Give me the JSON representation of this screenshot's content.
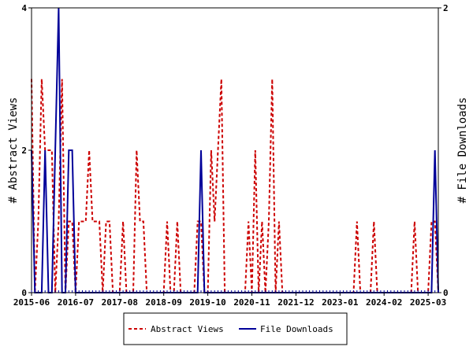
{
  "chart_data": {
    "type": "line",
    "left_ylabel": "# Abstract Views",
    "right_ylabel": "# File Downloads",
    "left_ylim": [
      0,
      4
    ],
    "right_ylim": [
      0,
      2
    ],
    "left_yticks": [
      "0",
      "2",
      "4"
    ],
    "right_yticks": [
      "0",
      "2"
    ],
    "xlim": [
      "2015-06",
      "2025-06"
    ],
    "xticks": [
      "2015-06",
      "2016-07",
      "2017-08",
      "2018-09",
      "2019-10",
      "2020-11",
      "2021-12",
      "2023-01",
      "2024-02",
      "2025-03"
    ],
    "grid": false,
    "legend_position": "bottom-center",
    "series": [
      {
        "name": "Abstract Views",
        "axis": "left",
        "color": "#cc0000",
        "style": "dashed",
        "points": [
          [
            "2015-06",
            3
          ],
          [
            "2015-07",
            0
          ],
          [
            "2015-08",
            1
          ],
          [
            "2015-09",
            3
          ],
          [
            "2015-10",
            2
          ],
          [
            "2015-11",
            2
          ],
          [
            "2015-12",
            2
          ],
          [
            "2016-01",
            0
          ],
          [
            "2016-02",
            1
          ],
          [
            "2016-03",
            3
          ],
          [
            "2016-04",
            0
          ],
          [
            "2016-05",
            1
          ],
          [
            "2016-06",
            1
          ],
          [
            "2016-07",
            0
          ],
          [
            "2016-08",
            1
          ],
          [
            "2016-09",
            1
          ],
          [
            "2016-10",
            1
          ],
          [
            "2016-11",
            2
          ],
          [
            "2016-12",
            1
          ],
          [
            "2017-01",
            1
          ],
          [
            "2017-02",
            1
          ],
          [
            "2017-03",
            0
          ],
          [
            "2017-04",
            1
          ],
          [
            "2017-05",
            1
          ],
          [
            "2017-06",
            0
          ],
          [
            "2017-07",
            0
          ],
          [
            "2017-08",
            0
          ],
          [
            "2017-09",
            1
          ],
          [
            "2017-10",
            0
          ],
          [
            "2017-11",
            0
          ],
          [
            "2017-12",
            0
          ],
          [
            "2018-01",
            2
          ],
          [
            "2018-02",
            1
          ],
          [
            "2018-03",
            1
          ],
          [
            "2018-04",
            0
          ],
          [
            "2018-05",
            0
          ],
          [
            "2018-06",
            0
          ],
          [
            "2018-07",
            0
          ],
          [
            "2018-08",
            0
          ],
          [
            "2018-09",
            0
          ],
          [
            "2018-10",
            1
          ],
          [
            "2018-11",
            0
          ],
          [
            "2018-12",
            0
          ],
          [
            "2019-01",
            1
          ],
          [
            "2019-02",
            0
          ],
          [
            "2019-03",
            0
          ],
          [
            "2019-04",
            0
          ],
          [
            "2019-05",
            0
          ],
          [
            "2019-06",
            0
          ],
          [
            "2019-07",
            1
          ],
          [
            "2019-08",
            1
          ],
          [
            "2019-09",
            0
          ],
          [
            "2019-10",
            0
          ],
          [
            "2019-11",
            2
          ],
          [
            "2019-12",
            1
          ],
          [
            "2020-01",
            2
          ],
          [
            "2020-02",
            3
          ],
          [
            "2020-03",
            0
          ],
          [
            "2020-04",
            0
          ],
          [
            "2020-05",
            0
          ],
          [
            "2020-06",
            0
          ],
          [
            "2020-07",
            0
          ],
          [
            "2020-08",
            0
          ],
          [
            "2020-09",
            0
          ],
          [
            "2020-10",
            1
          ],
          [
            "2020-11",
            0
          ],
          [
            "2020-12",
            2
          ],
          [
            "2021-01",
            0
          ],
          [
            "2021-02",
            1
          ],
          [
            "2021-03",
            0
          ],
          [
            "2021-04",
            1
          ],
          [
            "2021-05",
            3
          ],
          [
            "2021-06",
            0
          ],
          [
            "2021-07",
            1
          ],
          [
            "2021-08",
            0
          ],
          [
            "2021-09",
            0
          ],
          [
            "2021-10",
            0
          ],
          [
            "2021-11",
            0
          ],
          [
            "2021-12",
            0
          ],
          [
            "2022-01",
            0
          ],
          [
            "2022-02",
            0
          ],
          [
            "2022-03",
            0
          ],
          [
            "2022-04",
            0
          ],
          [
            "2022-05",
            0
          ],
          [
            "2022-06",
            0
          ],
          [
            "2022-07",
            0
          ],
          [
            "2022-08",
            0
          ],
          [
            "2022-09",
            0
          ],
          [
            "2022-10",
            0
          ],
          [
            "2022-11",
            0
          ],
          [
            "2022-12",
            0
          ],
          [
            "2023-01",
            0
          ],
          [
            "2023-02",
            0
          ],
          [
            "2023-03",
            0
          ],
          [
            "2023-04",
            0
          ],
          [
            "2023-05",
            0
          ],
          [
            "2023-06",
            1
          ],
          [
            "2023-07",
            0
          ],
          [
            "2023-08",
            0
          ],
          [
            "2023-09",
            0
          ],
          [
            "2023-10",
            0
          ],
          [
            "2023-11",
            1
          ],
          [
            "2023-12",
            0
          ],
          [
            "2024-01",
            0
          ],
          [
            "2024-02",
            0
          ],
          [
            "2024-03",
            0
          ],
          [
            "2024-04",
            0
          ],
          [
            "2024-05",
            0
          ],
          [
            "2024-06",
            0
          ],
          [
            "2024-07",
            0
          ],
          [
            "2024-08",
            0
          ],
          [
            "2024-09",
            0
          ],
          [
            "2024-10",
            0
          ],
          [
            "2024-11",
            1
          ],
          [
            "2024-12",
            0
          ],
          [
            "2025-01",
            0
          ],
          [
            "2025-02",
            0
          ],
          [
            "2025-03",
            0
          ],
          [
            "2025-04",
            1
          ],
          [
            "2025-05",
            1
          ],
          [
            "2025-06",
            0
          ]
        ]
      },
      {
        "name": "File Downloads",
        "axis": "right",
        "color": "#000099",
        "style": "solid",
        "points": [
          [
            "2015-06",
            1
          ],
          [
            "2015-07",
            0
          ],
          [
            "2015-08",
            0
          ],
          [
            "2015-09",
            0
          ],
          [
            "2015-10",
            1
          ],
          [
            "2015-11",
            0
          ],
          [
            "2015-12",
            0
          ],
          [
            "2016-01",
            1
          ],
          [
            "2016-02",
            2
          ],
          [
            "2016-03",
            0
          ],
          [
            "2016-04",
            0
          ],
          [
            "2016-05",
            1
          ],
          [
            "2016-06",
            1
          ],
          [
            "2016-07",
            0
          ],
          [
            "2016-08",
            0
          ],
          [
            "2016-09",
            0
          ],
          [
            "2016-10",
            0
          ],
          [
            "2016-11",
            0
          ],
          [
            "2016-12",
            0
          ],
          [
            "2017-01",
            0
          ],
          [
            "2017-02",
            0
          ],
          [
            "2017-03",
            0
          ],
          [
            "2017-04",
            0
          ],
          [
            "2017-05",
            0
          ],
          [
            "2017-06",
            0
          ],
          [
            "2017-07",
            0
          ],
          [
            "2017-08",
            0
          ],
          [
            "2017-09",
            0
          ],
          [
            "2017-10",
            0
          ],
          [
            "2017-11",
            0
          ],
          [
            "2017-12",
            0
          ],
          [
            "2018-01",
            0
          ],
          [
            "2018-02",
            0
          ],
          [
            "2018-03",
            0
          ],
          [
            "2018-04",
            0
          ],
          [
            "2018-05",
            0
          ],
          [
            "2018-06",
            0
          ],
          [
            "2018-07",
            0
          ],
          [
            "2018-08",
            0
          ],
          [
            "2018-09",
            0
          ],
          [
            "2018-10",
            0
          ],
          [
            "2018-11",
            0
          ],
          [
            "2018-12",
            0
          ],
          [
            "2019-01",
            0
          ],
          [
            "2019-02",
            0
          ],
          [
            "2019-03",
            0
          ],
          [
            "2019-04",
            0
          ],
          [
            "2019-05",
            0
          ],
          [
            "2019-06",
            0
          ],
          [
            "2019-07",
            0
          ],
          [
            "2019-08",
            1
          ],
          [
            "2019-09",
            0
          ],
          [
            "2019-10",
            0
          ],
          [
            "2019-11",
            0
          ],
          [
            "2019-12",
            0
          ],
          [
            "2020-01",
            0
          ],
          [
            "2020-02",
            0
          ],
          [
            "2020-03",
            0
          ],
          [
            "2020-04",
            0
          ],
          [
            "2020-05",
            0
          ],
          [
            "2020-06",
            0
          ],
          [
            "2020-07",
            0
          ],
          [
            "2020-08",
            0
          ],
          [
            "2020-09",
            0
          ],
          [
            "2020-10",
            0
          ],
          [
            "2020-11",
            0
          ],
          [
            "2020-12",
            0
          ],
          [
            "2021-01",
            0
          ],
          [
            "2021-02",
            0
          ],
          [
            "2021-03",
            0
          ],
          [
            "2021-04",
            0
          ],
          [
            "2021-05",
            0
          ],
          [
            "2021-06",
            0
          ],
          [
            "2021-07",
            0
          ],
          [
            "2021-08",
            0
          ],
          [
            "2021-09",
            0
          ],
          [
            "2021-10",
            0
          ],
          [
            "2021-11",
            0
          ],
          [
            "2021-12",
            0
          ],
          [
            "2022-01",
            0
          ],
          [
            "2022-02",
            0
          ],
          [
            "2022-03",
            0
          ],
          [
            "2022-04",
            0
          ],
          [
            "2022-05",
            0
          ],
          [
            "2022-06",
            0
          ],
          [
            "2022-07",
            0
          ],
          [
            "2022-08",
            0
          ],
          [
            "2022-09",
            0
          ],
          [
            "2022-10",
            0
          ],
          [
            "2022-11",
            0
          ],
          [
            "2022-12",
            0
          ],
          [
            "2023-01",
            0
          ],
          [
            "2023-02",
            0
          ],
          [
            "2023-03",
            0
          ],
          [
            "2023-04",
            0
          ],
          [
            "2023-05",
            0
          ],
          [
            "2023-06",
            0
          ],
          [
            "2023-07",
            0
          ],
          [
            "2023-08",
            0
          ],
          [
            "2023-09",
            0
          ],
          [
            "2023-10",
            0
          ],
          [
            "2023-11",
            0
          ],
          [
            "2023-12",
            0
          ],
          [
            "2024-01",
            0
          ],
          [
            "2024-02",
            0
          ],
          [
            "2024-03",
            0
          ],
          [
            "2024-04",
            0
          ],
          [
            "2024-05",
            0
          ],
          [
            "2024-06",
            0
          ],
          [
            "2024-07",
            0
          ],
          [
            "2024-08",
            0
          ],
          [
            "2024-09",
            0
          ],
          [
            "2024-10",
            0
          ],
          [
            "2024-11",
            0
          ],
          [
            "2024-12",
            0
          ],
          [
            "2025-01",
            0
          ],
          [
            "2025-02",
            0
          ],
          [
            "2025-03",
            0
          ],
          [
            "2025-04",
            0
          ],
          [
            "2025-05",
            1
          ],
          [
            "2025-06",
            0
          ]
        ]
      }
    ]
  }
}
